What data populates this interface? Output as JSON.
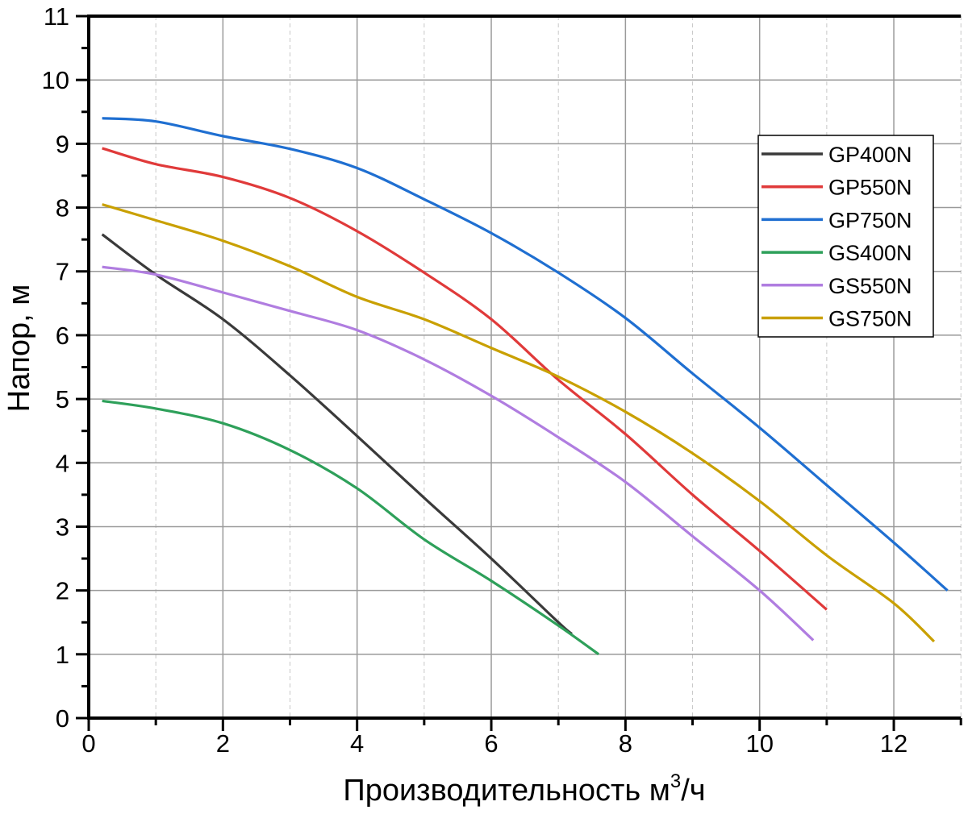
{
  "chart_data": {
    "type": "line",
    "title": "",
    "xlabel": "Производительность м",
    "xlabel_sup": "3",
    "xlabel_suffix": "/ч",
    "ylabel": "Напор, м",
    "xlim": [
      0,
      13
    ],
    "ylim": [
      0,
      11
    ],
    "xticks": [
      0,
      2,
      4,
      6,
      8,
      10,
      12
    ],
    "yticks": [
      0,
      1,
      2,
      3,
      4,
      5,
      6,
      7,
      8,
      9,
      10,
      11
    ],
    "grid": true,
    "legend_position": "top-right",
    "series": [
      {
        "name": "GP400N",
        "color": "#3a3a3a",
        "x": [
          0.2,
          1,
          2,
          3,
          4,
          5,
          6,
          7,
          7.2
        ],
        "y": [
          7.58,
          6.95,
          6.25,
          5.37,
          4.42,
          3.45,
          2.5,
          1.5,
          1.32
        ]
      },
      {
        "name": "GP550N",
        "color": "#e03a3a",
        "x": [
          0.2,
          1,
          2,
          3,
          4,
          5,
          6,
          7,
          8,
          9,
          10,
          11
        ],
        "y": [
          8.93,
          8.68,
          8.48,
          8.15,
          7.63,
          6.98,
          6.25,
          5.3,
          4.45,
          3.5,
          2.62,
          1.7
        ]
      },
      {
        "name": "GP750N",
        "color": "#1f6fd1",
        "x": [
          0.2,
          1,
          2,
          3,
          4,
          5,
          6,
          7,
          8,
          9,
          10,
          11,
          12,
          12.8
        ],
        "y": [
          9.4,
          9.35,
          9.12,
          8.92,
          8.62,
          8.13,
          7.6,
          6.98,
          6.27,
          5.4,
          4.55,
          3.65,
          2.75,
          2.0
        ]
      },
      {
        "name": "GS400N",
        "color": "#2ea05a",
        "x": [
          0.2,
          1,
          2,
          3,
          4,
          5,
          6,
          7,
          7.6
        ],
        "y": [
          4.97,
          4.85,
          4.62,
          4.2,
          3.6,
          2.8,
          2.15,
          1.45,
          1.0
        ]
      },
      {
        "name": "GS550N",
        "color": "#b07de0",
        "x": [
          0.2,
          1,
          2,
          3,
          4,
          5,
          6,
          7,
          8,
          9,
          10,
          10.8
        ],
        "y": [
          7.07,
          6.95,
          6.67,
          6.38,
          6.08,
          5.62,
          5.05,
          4.4,
          3.7,
          2.85,
          2.0,
          1.22
        ]
      },
      {
        "name": "GS750N",
        "color": "#c9a000",
        "x": [
          0.2,
          1,
          2,
          3,
          4,
          5,
          6,
          7,
          8,
          9,
          10,
          11,
          12,
          12.6
        ],
        "y": [
          8.05,
          7.8,
          7.48,
          7.08,
          6.6,
          6.25,
          5.8,
          5.35,
          4.8,
          4.15,
          3.4,
          2.55,
          1.8,
          1.2
        ]
      }
    ]
  }
}
